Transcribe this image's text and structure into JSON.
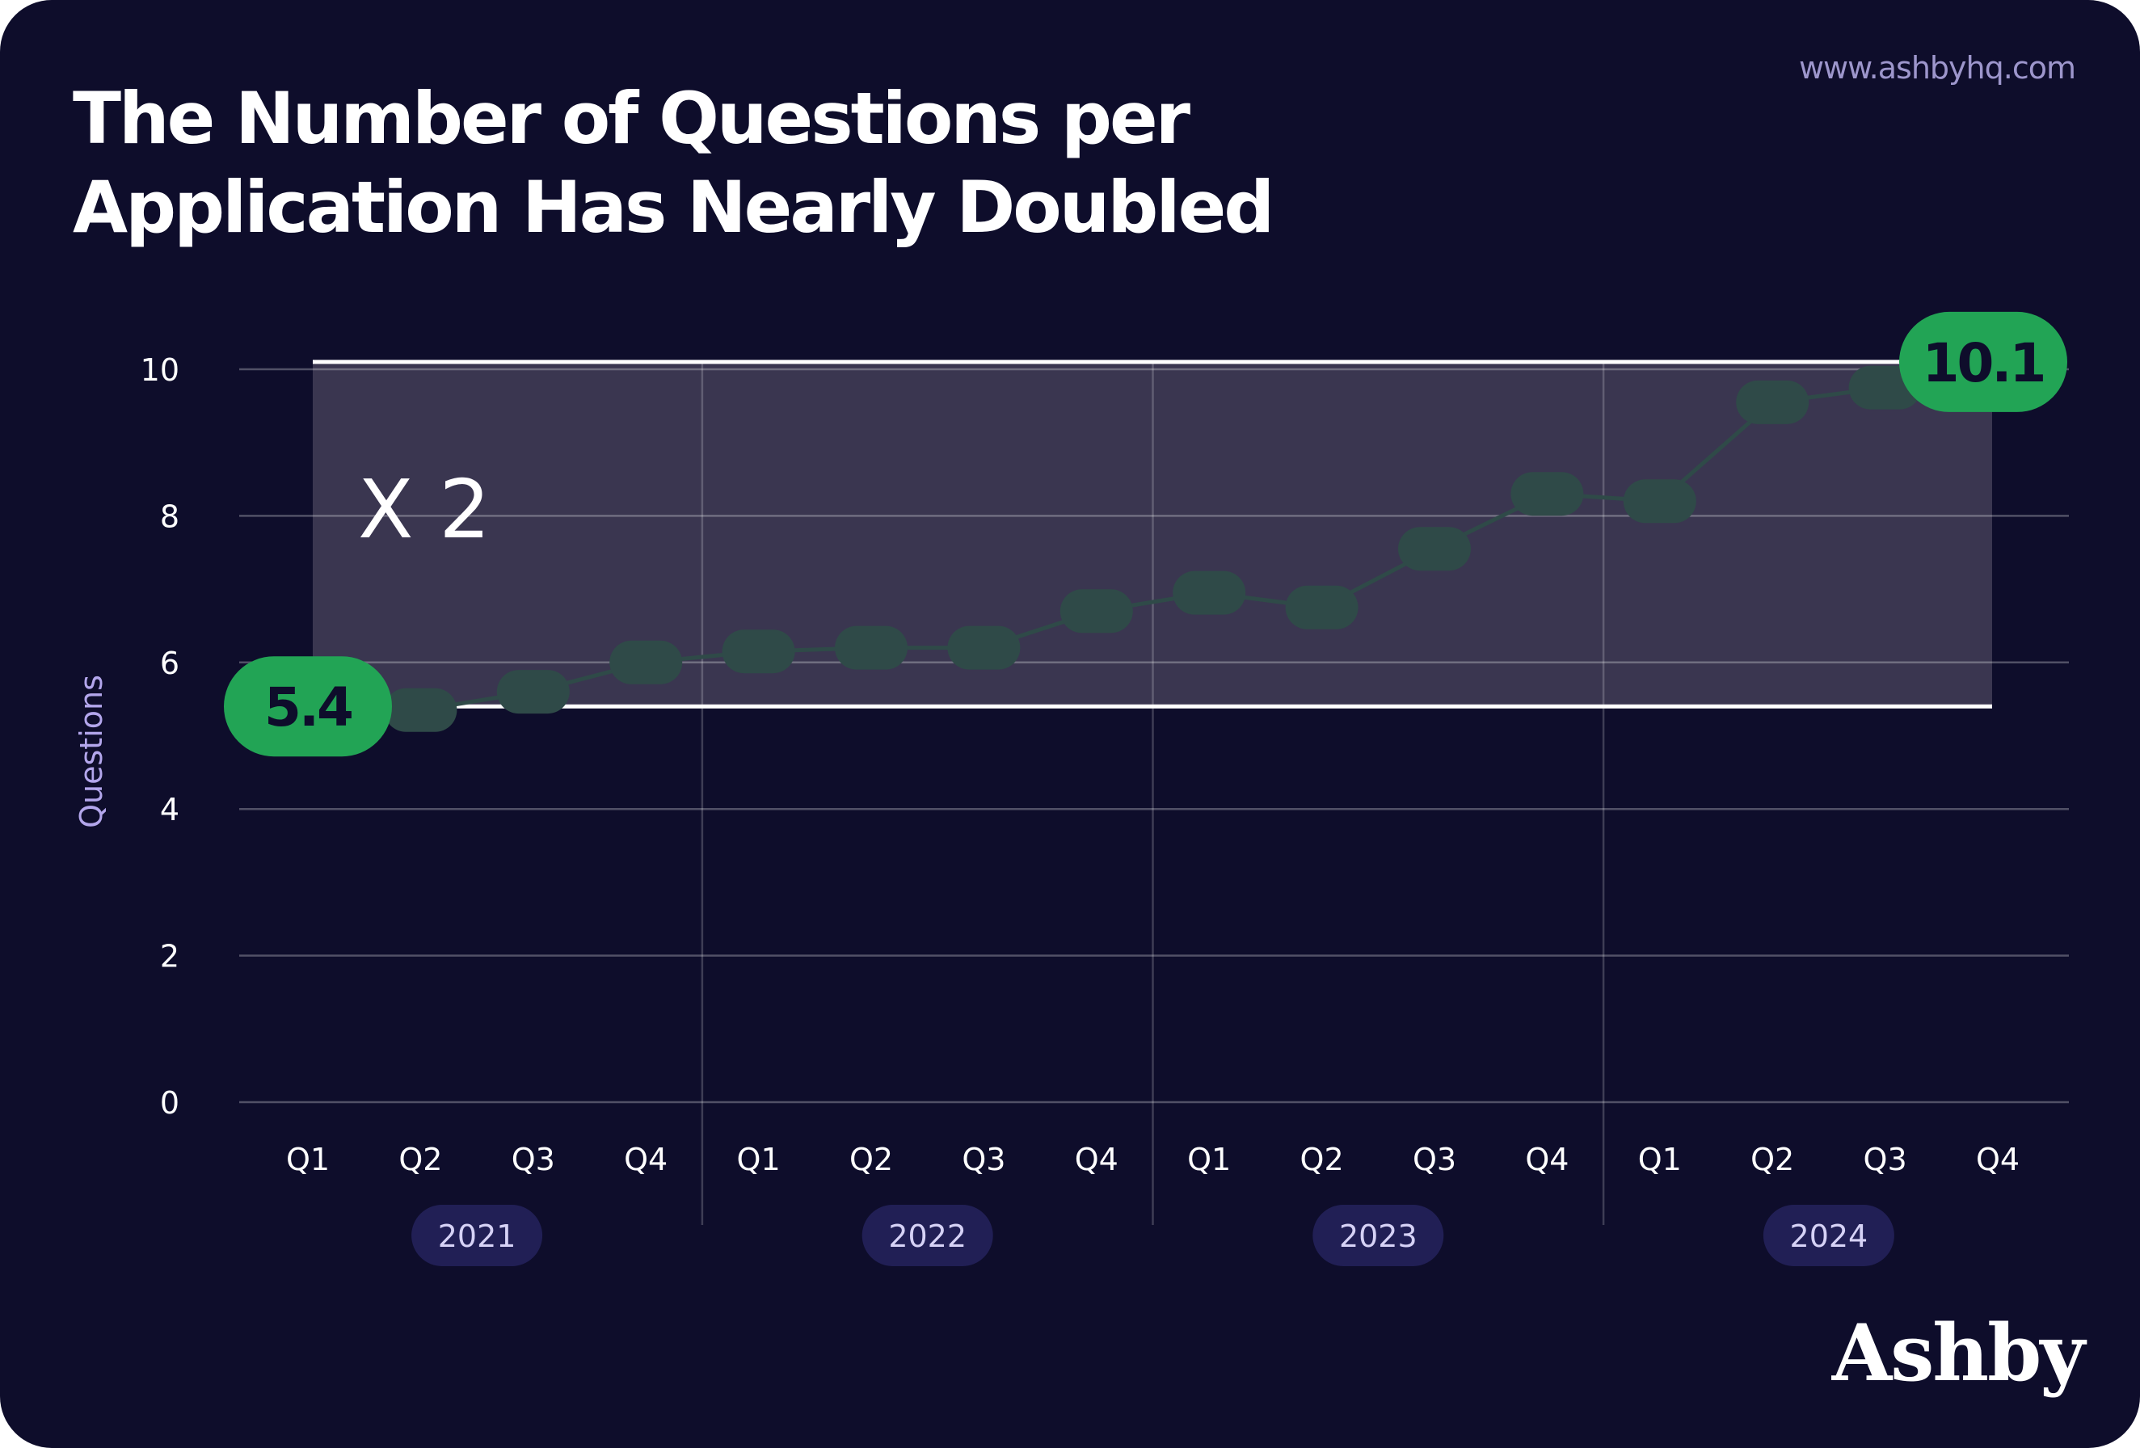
{
  "header": {
    "title_lines": [
      "The Number of Questions per",
      "Application Has Nearly Doubled"
    ],
    "site_url": "www.ashbyhq.com",
    "brand": "Ashby"
  },
  "colors": {
    "background": "#0e0d2b",
    "accent_green": "#22a455",
    "marker": "#2f4a48",
    "band": "#3a3650",
    "year_pill": "#211f55",
    "axis_title": "#b3a6ec"
  },
  "chart_data": {
    "type": "line",
    "ylabel": "Questions",
    "xlabel": "",
    "ylim": [
      0,
      10
    ],
    "yticks": [
      0,
      2,
      4,
      6,
      8,
      10
    ],
    "categories": [
      "Q1",
      "Q2",
      "Q3",
      "Q4",
      "Q1",
      "Q2",
      "Q3",
      "Q4",
      "Q1",
      "Q2",
      "Q3",
      "Q4",
      "Q1",
      "Q2",
      "Q3",
      "Q4"
    ],
    "year_groups": [
      {
        "label": "2021",
        "start": 0,
        "end": 3
      },
      {
        "label": "2022",
        "start": 4,
        "end": 7
      },
      {
        "label": "2023",
        "start": 8,
        "end": 11
      },
      {
        "label": "2024",
        "start": 12,
        "end": 15
      }
    ],
    "series": [
      {
        "values": [
          5.4,
          5.35,
          5.6,
          6.0,
          6.15,
          6.2,
          6.2,
          6.7,
          6.95,
          6.75,
          7.55,
          8.3,
          8.2,
          9.55,
          9.75,
          10.1
        ]
      }
    ],
    "grid": true,
    "band": {
      "low": 5.4,
      "high": 10.1
    },
    "annotations": {
      "start_value": "5.4",
      "end_value": "10.1",
      "multiplier": "X 2"
    }
  }
}
